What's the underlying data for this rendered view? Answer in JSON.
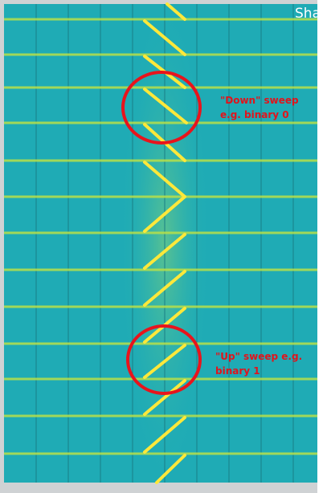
{
  "header": {
    "title": "Shar"
  },
  "annotations": [
    {
      "lines": [
        "\"Down\" sweep",
        "e.g. binary 0"
      ]
    },
    {
      "lines": [
        "\"Up\" sweep e.g.",
        "binary 1"
      ]
    }
  ]
}
